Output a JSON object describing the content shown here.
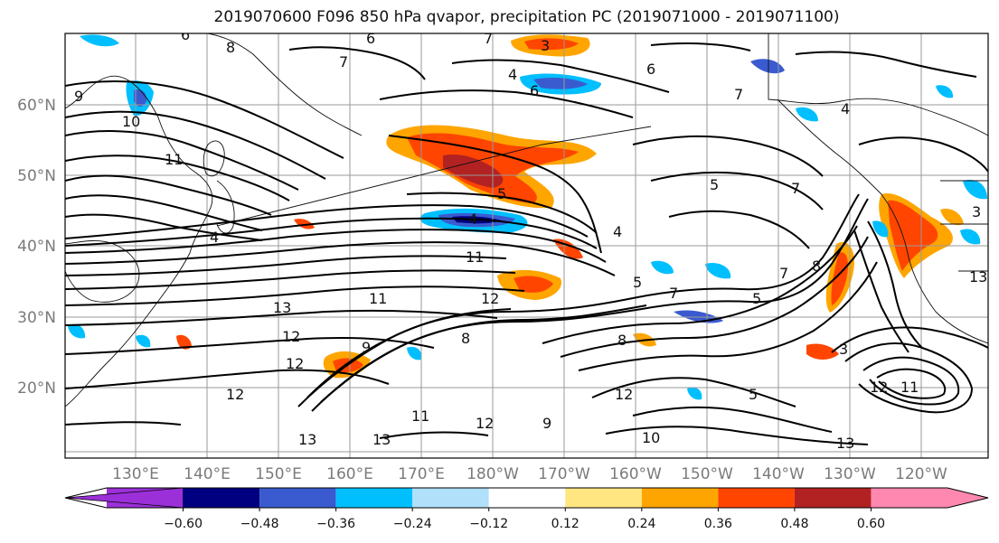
{
  "title": "2019070600 F096 850 hPa qvapor, precipitation PC (2019071000 - 2019071100)",
  "lat_labels": [
    "60°N",
    "50°N",
    "40°N",
    "30°N",
    "20°N"
  ],
  "lon_labels": [
    "130°E",
    "140°E",
    "150°E",
    "160°E",
    "170°E",
    "180°W",
    "170°W",
    "160°W",
    "150°W",
    "140°W",
    "130°W",
    "120°W"
  ],
  "colorbar": {
    "levels": [
      "−0.60",
      "−0.48",
      "−0.36",
      "−0.24",
      "−0.12",
      "0.12",
      "0.24",
      "0.36",
      "0.48",
      "0.60"
    ],
    "colors": [
      "#9b30d9",
      "#000080",
      "#3a5bcf",
      "#00bfff",
      "#b0e0fa",
      "#ffffff",
      "#ffe680",
      "#ffa500",
      "#ff4500",
      "#b22222",
      "#ff88b0"
    ]
  },
  "contour_labels": [
    {
      "text": "6"
    },
    {
      "text": "8"
    },
    {
      "text": "9"
    },
    {
      "text": "10"
    },
    {
      "text": "11"
    },
    {
      "text": "7"
    },
    {
      "text": "6"
    },
    {
      "text": "7"
    },
    {
      "text": "4"
    },
    {
      "text": "3"
    },
    {
      "text": "6"
    },
    {
      "text": "6"
    },
    {
      "text": "4"
    },
    {
      "text": "5"
    },
    {
      "text": "4"
    },
    {
      "text": "11"
    },
    {
      "text": "4"
    },
    {
      "text": "5"
    },
    {
      "text": "11"
    },
    {
      "text": "13"
    },
    {
      "text": "12"
    },
    {
      "text": "12"
    },
    {
      "text": "9"
    },
    {
      "text": "8"
    },
    {
      "text": "12"
    },
    {
      "text": "12"
    },
    {
      "text": "11"
    },
    {
      "text": "12"
    },
    {
      "text": "13"
    },
    {
      "text": "9"
    },
    {
      "text": "10"
    },
    {
      "text": "13"
    },
    {
      "text": "12"
    },
    {
      "text": "13"
    },
    {
      "text": "12"
    },
    {
      "text": "11"
    },
    {
      "text": "8"
    },
    {
      "text": "5"
    },
    {
      "text": "7"
    },
    {
      "text": "5"
    },
    {
      "text": "7"
    },
    {
      "text": "8"
    },
    {
      "text": "7"
    },
    {
      "text": "4"
    },
    {
      "text": "3"
    },
    {
      "text": "13"
    },
    {
      "text": "5"
    },
    {
      "text": "7"
    },
    {
      "text": "3"
    }
  ]
}
